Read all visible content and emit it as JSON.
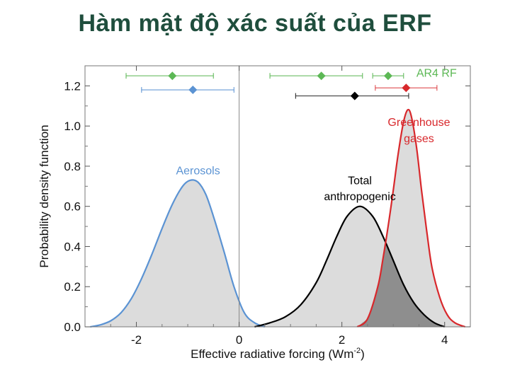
{
  "slide": {
    "title": "Hàm mật độ xác suất của ERF"
  },
  "chart_data": {
    "type": "area",
    "xlabel": "Effective radiative forcing (Wm",
    "xlabel_sup": "-2",
    "xlabel_end": ")",
    "ylabel": "Probability density function",
    "xlim": [
      -3.0,
      4.5
    ],
    "ylim": [
      0.0,
      1.3
    ],
    "x_ticks": [
      -2,
      0,
      2,
      4
    ],
    "x_tick_labels": [
      "-2",
      "0",
      "2",
      "4"
    ],
    "y_ticks": [
      0.0,
      0.2,
      0.4,
      0.6,
      0.8,
      1.0,
      1.2
    ],
    "y_tick_labels": [
      "0.0",
      "0.2",
      "0.4",
      "0.6",
      "0.8",
      "1.0",
      "1.2"
    ],
    "series": [
      {
        "name": "Aerosols",
        "color": "#5b93d3",
        "x": [
          -2.9,
          -2.7,
          -2.5,
          -2.3,
          -2.1,
          -1.9,
          -1.7,
          -1.5,
          -1.3,
          -1.1,
          -0.95,
          -0.8,
          -0.65,
          -0.5,
          -0.3,
          -0.1,
          0.1,
          0.3,
          0.5
        ],
        "y": [
          0.0,
          0.01,
          0.03,
          0.07,
          0.14,
          0.24,
          0.36,
          0.49,
          0.61,
          0.7,
          0.73,
          0.72,
          0.66,
          0.55,
          0.38,
          0.2,
          0.07,
          0.02,
          0.0
        ]
      },
      {
        "name": "Total anthropogenic",
        "color": "#000000",
        "x": [
          0.3,
          0.6,
          0.9,
          1.2,
          1.5,
          1.7,
          1.9,
          2.1,
          2.35,
          2.6,
          2.8,
          3.0,
          3.2,
          3.4,
          3.6,
          3.8,
          4.0
        ],
        "y": [
          0.0,
          0.02,
          0.05,
          0.11,
          0.22,
          0.33,
          0.45,
          0.55,
          0.6,
          0.55,
          0.45,
          0.33,
          0.21,
          0.12,
          0.06,
          0.02,
          0.0
        ]
      },
      {
        "name": "Greenhouse gases",
        "color": "#d8282c",
        "x": [
          2.3,
          2.5,
          2.7,
          2.8,
          2.9,
          3.0,
          3.1,
          3.2,
          3.28,
          3.35,
          3.45,
          3.55,
          3.65,
          3.75,
          3.9,
          4.05,
          4.2,
          4.4
        ],
        "y": [
          0.0,
          0.04,
          0.2,
          0.34,
          0.5,
          0.68,
          0.87,
          1.02,
          1.08,
          1.05,
          0.9,
          0.68,
          0.48,
          0.3,
          0.15,
          0.06,
          0.02,
          0.0
        ]
      }
    ],
    "overlap": {
      "name": "Total anthropogenic ∩ Greenhouse gases",
      "color": "#8e8e8e"
    },
    "fill_color": "#dcdcdc",
    "error_bars": [
      {
        "name": "AR4 RF aerosols",
        "color": "#5cb855",
        "y": 1.25,
        "center": -1.3,
        "low": -2.2,
        "high": -0.5
      },
      {
        "name": "ERF aerosols",
        "color": "#5b93d3",
        "y": 1.18,
        "center": -0.9,
        "low": -1.9,
        "high": -0.1
      },
      {
        "name": "AR4 RF total",
        "color": "#5cb855",
        "y": 1.25,
        "center": 1.6,
        "low": 0.6,
        "high": 2.4
      },
      {
        "name": "AR4 RF greenhouse gases",
        "color": "#5cb855",
        "y": 1.25,
        "center": 2.9,
        "low": 2.6,
        "high": 3.2
      },
      {
        "name": "ERF greenhouse gases",
        "color": "#d8282c",
        "y": 1.19,
        "center": 3.25,
        "low": 2.65,
        "high": 3.85
      },
      {
        "name": "ERF total anthropogenic",
        "color": "#000000",
        "y": 1.15,
        "center": 2.25,
        "low": 1.1,
        "high": 3.3
      }
    ],
    "annotations": [
      {
        "text": "AR4 RF",
        "color": "#5cb855",
        "x": 3.45,
        "y": 1.245
      },
      {
        "text": "Greenhouse",
        "color": "#d8282c",
        "x": 3.5,
        "y": 1.0
      },
      {
        "text": "gases",
        "color": "#d8282c",
        "x": 3.5,
        "y": 0.92
      },
      {
        "text": "Aerosols",
        "color": "#5b93d3",
        "x": -0.8,
        "y": 0.76
      },
      {
        "text": "Total",
        "color": "#000000",
        "x": 2.35,
        "y": 0.71
      },
      {
        "text": "anthropogenic",
        "color": "#000000",
        "x": 2.35,
        "y": 0.63
      }
    ],
    "grid": false
  }
}
